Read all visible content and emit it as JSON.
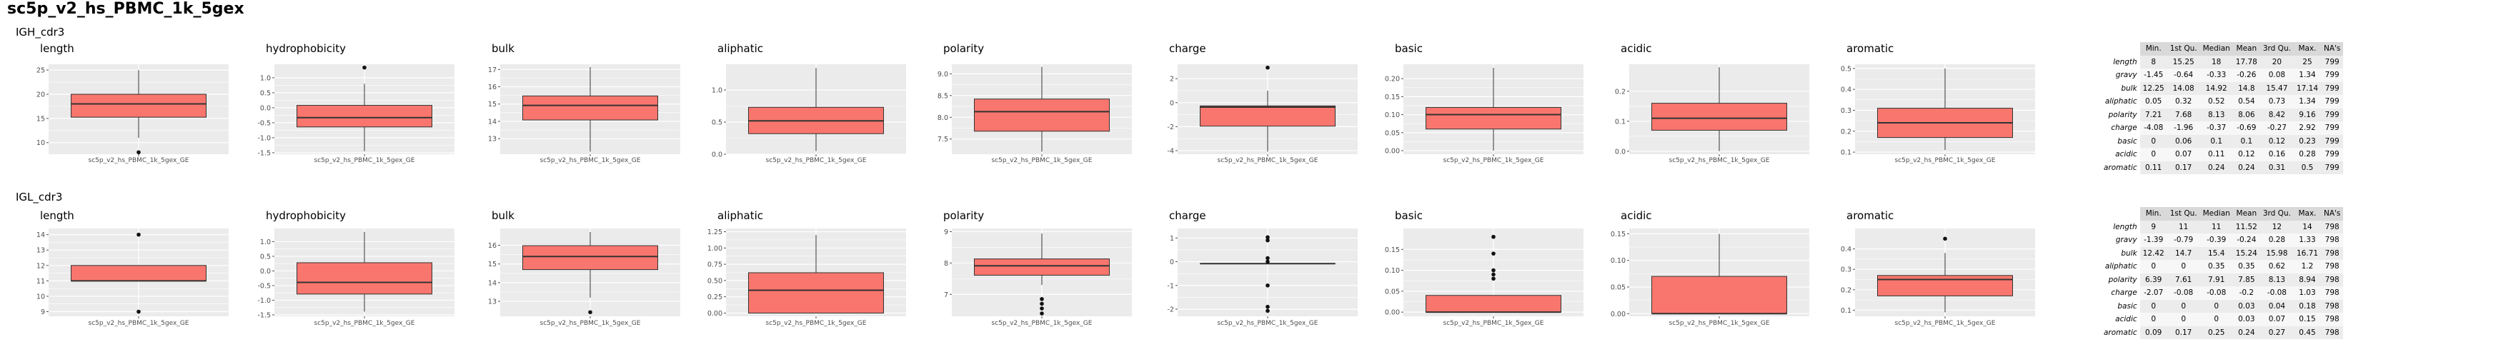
{
  "title": "sc5p_v2_hs_PBMC_1k_5gex",
  "colors": {
    "panel_bg": "#ebebeb",
    "grid": "#ffffff",
    "box_fill": "#f8766d",
    "box_line": "#333333",
    "axis_text": "#4d4d4d"
  },
  "stats_headers": [
    "Min.",
    "1st Qu.",
    "Median",
    "Mean",
    "3rd Qu.",
    "Max.",
    "NA's"
  ],
  "sections": [
    {
      "label": "IGH_cdr3",
      "chart_data": [
        {
          "type": "box",
          "title": "length",
          "category": "sc5p_v2_hs_PBMC_1k_5gex_GE",
          "ylim": [
            7.6,
            26.2
          ],
          "yticks": [
            10,
            15,
            20,
            25
          ],
          "ytick_labels": [
            "10",
            "15",
            "20",
            "25"
          ],
          "box": {
            "lower_whisker": 11,
            "q1": 15.25,
            "median": 18,
            "q3": 20,
            "upper_whisker": 25
          },
          "outliers": [
            8
          ]
        },
        {
          "type": "box",
          "title": "hydrophobicity",
          "category": "sc5p_v2_hs_PBMC_1k_5gex_GE",
          "ylim": [
            -1.55,
            1.45
          ],
          "yticks": [
            -1.5,
            -1.0,
            -0.5,
            0.0,
            0.5,
            1.0
          ],
          "ytick_labels": [
            "-1.5",
            "-1.0",
            "-0.5",
            "0.0",
            "0.5",
            "1.0"
          ],
          "box": {
            "lower_whisker": -1.45,
            "q1": -0.64,
            "median": -0.33,
            "q3": 0.08,
            "upper_whisker": 0.8
          },
          "outliers": [
            1.34
          ]
        },
        {
          "type": "box",
          "title": "bulk",
          "category": "sc5p_v2_hs_PBMC_1k_5gex_GE",
          "ylim": [
            12.1,
            17.3
          ],
          "yticks": [
            13,
            14,
            15,
            16,
            17
          ],
          "ytick_labels": [
            "13",
            "14",
            "15",
            "16",
            "17"
          ],
          "box": {
            "lower_whisker": 12.25,
            "q1": 14.08,
            "median": 14.92,
            "q3": 15.47,
            "upper_whisker": 17.14
          },
          "outliers": []
        },
        {
          "type": "box",
          "title": "aliphatic",
          "category": "sc5p_v2_hs_PBMC_1k_5gex_GE",
          "ylim": [
            0.0,
            1.4
          ],
          "yticks": [
            0.0,
            0.5,
            1.0
          ],
          "ytick_labels": [
            "0.0",
            "0.5",
            "1.0"
          ],
          "box": {
            "lower_whisker": 0.05,
            "q1": 0.32,
            "median": 0.52,
            "q3": 0.73,
            "upper_whisker": 1.34
          },
          "outliers": []
        },
        {
          "type": "box",
          "title": "polarity",
          "category": "sc5p_v2_hs_PBMC_1k_5gex_GE",
          "ylim": [
            7.15,
            9.22
          ],
          "yticks": [
            7.5,
            8.0,
            8.5,
            9.0
          ],
          "ytick_labels": [
            "7.5",
            "8.0",
            "8.5",
            "9.0"
          ],
          "box": {
            "lower_whisker": 7.21,
            "q1": 7.68,
            "median": 8.13,
            "q3": 8.42,
            "upper_whisker": 9.16
          },
          "outliers": []
        },
        {
          "type": "box",
          "title": "charge",
          "category": "sc5p_v2_hs_PBMC_1k_5gex_GE",
          "ylim": [
            -4.3,
            3.2
          ],
          "yticks": [
            -4,
            -2,
            0,
            2
          ],
          "ytick_labels": [
            "-4",
            "-2",
            "0",
            "2"
          ],
          "box": {
            "lower_whisker": -4.08,
            "q1": -1.96,
            "median": -0.37,
            "q3": -0.27,
            "upper_whisker": 1.0
          },
          "outliers": [
            2.92
          ]
        },
        {
          "type": "box",
          "title": "basic",
          "category": "sc5p_v2_hs_PBMC_1k_5gex_GE",
          "ylim": [
            -0.01,
            0.24
          ],
          "yticks": [
            0.0,
            0.05,
            0.1,
            0.15,
            0.2
          ],
          "ytick_labels": [
            "0.00",
            "0.05",
            "0.10",
            "0.15",
            "0.20"
          ],
          "box": {
            "lower_whisker": 0.0,
            "q1": 0.06,
            "median": 0.1,
            "q3": 0.12,
            "upper_whisker": 0.23
          },
          "outliers": []
        },
        {
          "type": "box",
          "title": "acidic",
          "category": "sc5p_v2_hs_PBMC_1k_5gex_GE",
          "ylim": [
            -0.01,
            0.29
          ],
          "yticks": [
            0.0,
            0.1,
            0.2
          ],
          "ytick_labels": [
            "0.0",
            "0.1",
            "0.2"
          ],
          "box": {
            "lower_whisker": 0.0,
            "q1": 0.07,
            "median": 0.11,
            "q3": 0.16,
            "upper_whisker": 0.28
          },
          "outliers": []
        },
        {
          "type": "box",
          "title": "aromatic",
          "category": "sc5p_v2_hs_PBMC_1k_5gex_GE",
          "ylim": [
            0.09,
            0.52
          ],
          "yticks": [
            0.1,
            0.2,
            0.3,
            0.4,
            0.5
          ],
          "ytick_labels": [
            "0.1",
            "0.2",
            "0.3",
            "0.4",
            "0.5"
          ],
          "box": {
            "lower_whisker": 0.11,
            "q1": 0.17,
            "median": 0.24,
            "q3": 0.31,
            "upper_whisker": 0.5
          },
          "outliers": []
        }
      ],
      "stats": [
        {
          "name": "length",
          "values": [
            "8",
            "15.25",
            "18",
            "17.78",
            "20",
            "25",
            "799"
          ]
        },
        {
          "name": "gravy",
          "values": [
            "-1.45",
            "-0.64",
            "-0.33",
            "-0.26",
            "0.08",
            "1.34",
            "799"
          ]
        },
        {
          "name": "bulk",
          "values": [
            "12.25",
            "14.08",
            "14.92",
            "14.8",
            "15.47",
            "17.14",
            "799"
          ]
        },
        {
          "name": "aliphatic",
          "values": [
            "0.05",
            "0.32",
            "0.52",
            "0.54",
            "0.73",
            "1.34",
            "799"
          ]
        },
        {
          "name": "polarity",
          "values": [
            "7.21",
            "7.68",
            "8.13",
            "8.06",
            "8.42",
            "9.16",
            "799"
          ]
        },
        {
          "name": "charge",
          "values": [
            "-4.08",
            "-1.96",
            "-0.37",
            "-0.69",
            "-0.27",
            "2.92",
            "799"
          ]
        },
        {
          "name": "basic",
          "values": [
            "0",
            "0.06",
            "0.1",
            "0.1",
            "0.12",
            "0.23",
            "799"
          ]
        },
        {
          "name": "acidic",
          "values": [
            "0",
            "0.07",
            "0.11",
            "0.12",
            "0.16",
            "0.28",
            "799"
          ]
        },
        {
          "name": "aromatic",
          "values": [
            "0.11",
            "0.17",
            "0.24",
            "0.24",
            "0.31",
            "0.5",
            "799"
          ]
        }
      ]
    },
    {
      "label": "IGL_cdr3",
      "chart_data": [
        {
          "type": "box",
          "title": "length",
          "category": "sc5p_v2_hs_PBMC_1k_5gex_GE",
          "ylim": [
            8.7,
            14.4
          ],
          "yticks": [
            9,
            10,
            11,
            12,
            13,
            14
          ],
          "ytick_labels": [
            "9",
            "10",
            "11",
            "12",
            "13",
            "14"
          ],
          "box": {
            "lower_whisker": 11,
            "q1": 11,
            "median": 11,
            "q3": 12,
            "upper_whisker": 12
          },
          "outliers": [
            9,
            14
          ]
        },
        {
          "type": "box",
          "title": "hydrophobicity",
          "category": "sc5p_v2_hs_PBMC_1k_5gex_GE",
          "ylim": [
            -1.55,
            1.45
          ],
          "yticks": [
            -1.5,
            -1.0,
            -0.5,
            0.0,
            0.5,
            1.0
          ],
          "ytick_labels": [
            "-1.5",
            "-1.0",
            "-0.5",
            "0.0",
            "0.5",
            "1.0"
          ],
          "box": {
            "lower_whisker": -1.39,
            "q1": -0.79,
            "median": -0.39,
            "q3": 0.28,
            "upper_whisker": 1.33
          },
          "outliers": []
        },
        {
          "type": "box",
          "title": "bulk",
          "category": "sc5p_v2_hs_PBMC_1k_5gex_GE",
          "ylim": [
            12.2,
            16.9
          ],
          "yticks": [
            13,
            14,
            15,
            16
          ],
          "ytick_labels": [
            "13",
            "14",
            "15",
            "16"
          ],
          "box": {
            "lower_whisker": 13.2,
            "q1": 14.7,
            "median": 15.4,
            "q3": 15.98,
            "upper_whisker": 16.71
          },
          "outliers": [
            12.42
          ]
        },
        {
          "type": "box",
          "title": "aliphatic",
          "category": "sc5p_v2_hs_PBMC_1k_5gex_GE",
          "ylim": [
            -0.05,
            1.3
          ],
          "yticks": [
            0.0,
            0.25,
            0.5,
            0.75,
            1.0,
            1.25
          ],
          "ytick_labels": [
            "0.00",
            "0.25",
            "0.50",
            "0.75",
            "1.00",
            "1.25"
          ],
          "box": {
            "lower_whisker": 0.0,
            "q1": 0.0,
            "median": 0.35,
            "q3": 0.62,
            "upper_whisker": 1.2
          },
          "outliers": []
        },
        {
          "type": "box",
          "title": "polarity",
          "category": "sc5p_v2_hs_PBMC_1k_5gex_GE",
          "ylim": [
            6.3,
            9.1
          ],
          "yticks": [
            7,
            8,
            9
          ],
          "ytick_labels": [
            "7",
            "8",
            "9"
          ],
          "box": {
            "lower_whisker": 7.3,
            "q1": 7.61,
            "median": 7.91,
            "q3": 8.13,
            "upper_whisker": 8.94
          },
          "outliers": [
            6.39,
            6.55,
            6.7,
            6.85
          ]
        },
        {
          "type": "box",
          "title": "charge",
          "category": "sc5p_v2_hs_PBMC_1k_5gex_GE",
          "ylim": [
            -2.3,
            1.4
          ],
          "yticks": [
            -2,
            -1,
            0,
            1
          ],
          "ytick_labels": [
            "-2",
            "-1",
            "0",
            "1"
          ],
          "box": {
            "lower_whisker": -0.08,
            "q1": -0.08,
            "median": -0.08,
            "q3": -0.08,
            "upper_whisker": -0.08
          },
          "outliers": [
            -2.07,
            -1.9,
            -1.0,
            0.0,
            0.15,
            0.9,
            1.03
          ]
        },
        {
          "type": "box",
          "title": "basic",
          "category": "sc5p_v2_hs_PBMC_1k_5gex_GE",
          "ylim": [
            -0.01,
            0.2
          ],
          "yticks": [
            0.0,
            0.05,
            0.1,
            0.15
          ],
          "ytick_labels": [
            "0.00",
            "0.05",
            "0.10",
            "0.15"
          ],
          "box": {
            "lower_whisker": 0.0,
            "q1": 0.0,
            "median": 0.0,
            "q3": 0.04,
            "upper_whisker": 0.04
          },
          "outliers": [
            0.08,
            0.09,
            0.1,
            0.14,
            0.18
          ]
        },
        {
          "type": "box",
          "title": "acidic",
          "category": "sc5p_v2_hs_PBMC_1k_5gex_GE",
          "ylim": [
            -0.005,
            0.16
          ],
          "yticks": [
            0.0,
            0.05,
            0.1,
            0.15
          ],
          "ytick_labels": [
            "0.00",
            "0.05",
            "0.10",
            "0.15"
          ],
          "box": {
            "lower_whisker": 0.0,
            "q1": 0.0,
            "median": 0.0,
            "q3": 0.07,
            "upper_whisker": 0.15
          },
          "outliers": []
        },
        {
          "type": "box",
          "title": "aromatic",
          "category": "sc5p_v2_hs_PBMC_1k_5gex_GE",
          "ylim": [
            0.07,
            0.5
          ],
          "yticks": [
            0.1,
            0.2,
            0.3,
            0.4
          ],
          "ytick_labels": [
            "0.1",
            "0.2",
            "0.3",
            "0.4"
          ],
          "box": {
            "lower_whisker": 0.09,
            "q1": 0.17,
            "median": 0.25,
            "q3": 0.27,
            "upper_whisker": 0.38
          },
          "outliers": [
            0.45
          ]
        }
      ],
      "stats": [
        {
          "name": "length",
          "values": [
            "9",
            "11",
            "11",
            "11.52",
            "12",
            "14",
            "798"
          ]
        },
        {
          "name": "gravy",
          "values": [
            "-1.39",
            "-0.79",
            "-0.39",
            "-0.24",
            "0.28",
            "1.33",
            "798"
          ]
        },
        {
          "name": "bulk",
          "values": [
            "12.42",
            "14.7",
            "15.4",
            "15.24",
            "15.98",
            "16.71",
            "798"
          ]
        },
        {
          "name": "aliphatic",
          "values": [
            "0",
            "0",
            "0.35",
            "0.35",
            "0.62",
            "1.2",
            "798"
          ]
        },
        {
          "name": "polarity",
          "values": [
            "6.39",
            "7.61",
            "7.91",
            "7.85",
            "8.13",
            "8.94",
            "798"
          ]
        },
        {
          "name": "charge",
          "values": [
            "-2.07",
            "-0.08",
            "-0.08",
            "-0.2",
            "-0.08",
            "1.03",
            "798"
          ]
        },
        {
          "name": "basic",
          "values": [
            "0",
            "0",
            "0",
            "0.03",
            "0.04",
            "0.18",
            "798"
          ]
        },
        {
          "name": "acidic",
          "values": [
            "0",
            "0",
            "0",
            "0.03",
            "0.07",
            "0.15",
            "798"
          ]
        },
        {
          "name": "aromatic",
          "values": [
            "0.09",
            "0.17",
            "0.25",
            "0.24",
            "0.27",
            "0.45",
            "798"
          ]
        }
      ]
    }
  ]
}
